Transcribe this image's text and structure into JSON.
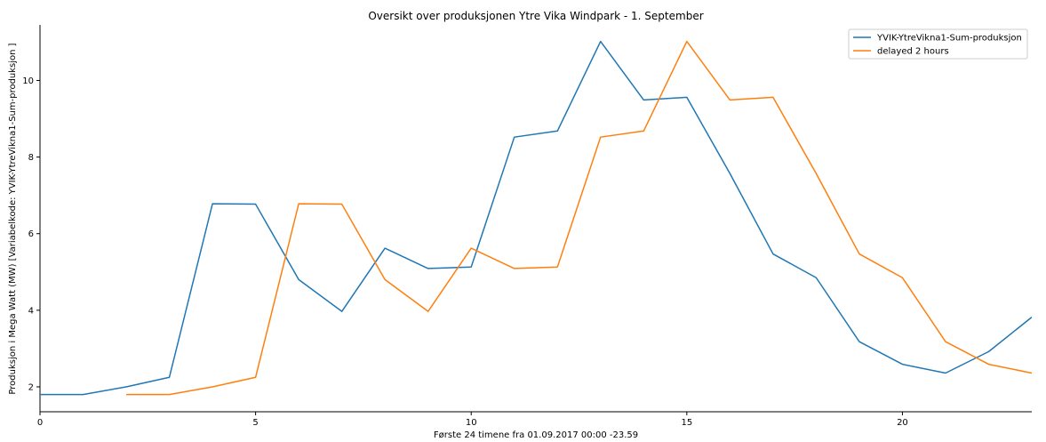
{
  "chart_data": {
    "type": "line",
    "title": "Oversikt over produksjonen Ytre Vika Windpark -  1. September",
    "xlabel": "Første 24 timene fra 01.09.2017 00:00 -23.59",
    "ylabel": "Produksjon i Mega Watt (MW) [Variabelkode: YVIK-YtreVikna1-Sum-produksjon ]",
    "xlim": [
      0,
      23
    ],
    "ylim": [
      1.35,
      11.45
    ],
    "xticks": [
      0,
      5,
      10,
      15,
      20
    ],
    "yticks": [
      2,
      4,
      6,
      8,
      10
    ],
    "grid": false,
    "legend_position": "top-right",
    "series": [
      {
        "name": "YVIK-YtreVikna1-Sum-produksjon",
        "color": "#1f77b4",
        "x": [
          0,
          1,
          2,
          3,
          4,
          5,
          6,
          7,
          8,
          9,
          10,
          11,
          12,
          13,
          14,
          15,
          16,
          17,
          18,
          19,
          20,
          21,
          22,
          23
        ],
        "y": [
          1.8,
          1.8,
          2.0,
          2.25,
          6.78,
          6.77,
          4.8,
          3.97,
          5.62,
          5.09,
          5.13,
          8.52,
          8.68,
          11.02,
          9.49,
          9.56,
          7.57,
          5.47,
          4.85,
          3.18,
          2.59,
          2.36,
          2.92,
          3.82
        ]
      },
      {
        "name": "delayed 2 hours",
        "color": "#ff7f0e",
        "x": [
          2,
          3,
          4,
          5,
          6,
          7,
          8,
          9,
          10,
          11,
          12,
          13,
          14,
          15,
          16,
          17,
          18,
          19,
          20,
          21,
          22,
          23
        ],
        "y": [
          1.8,
          1.8,
          2.0,
          2.25,
          6.78,
          6.77,
          4.8,
          3.97,
          5.62,
          5.09,
          5.13,
          8.52,
          8.68,
          11.02,
          9.49,
          9.56,
          7.57,
          5.47,
          4.85,
          3.18,
          2.59,
          2.36
        ]
      }
    ]
  }
}
